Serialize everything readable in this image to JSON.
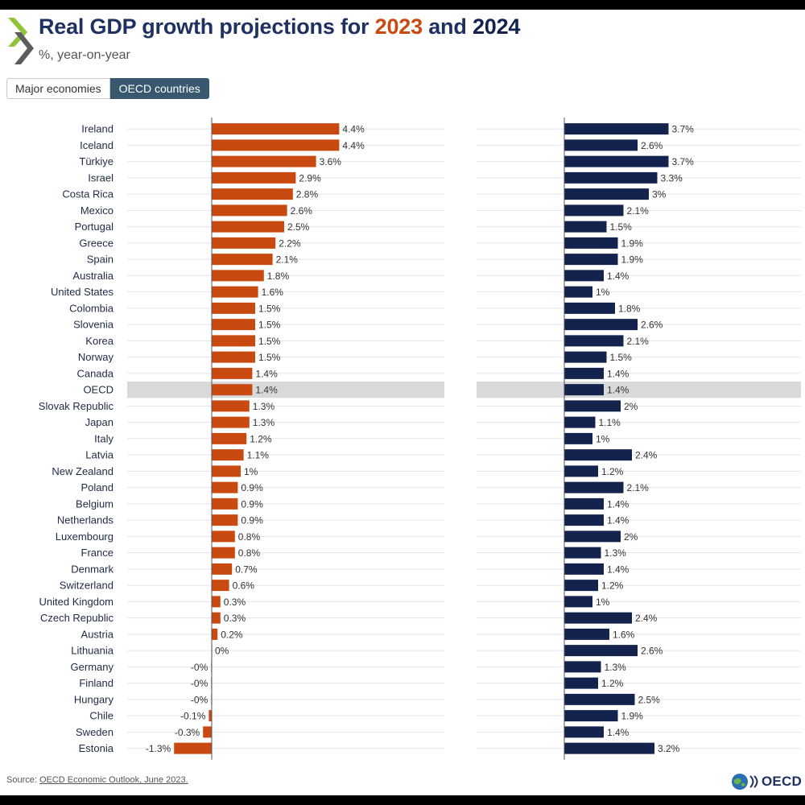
{
  "title": {
    "prefix": "Real GDP growth projections for ",
    "year1": "2023",
    "joiner": " and ",
    "year2": "2024"
  },
  "subtitle": "%, year-on-year",
  "tabs": [
    {
      "label": "Major economies",
      "active": false
    },
    {
      "label": "OECD countries",
      "active": true
    }
  ],
  "colors": {
    "series_2023": "#c94a10",
    "series_2024": "#14234d",
    "highlight_row": "#d9d9d9",
    "grid": "#e4e4e4"
  },
  "chart_data": {
    "type": "bar",
    "orientation": "horizontal",
    "layout": "two side-by-side panels, one per year",
    "categories": [
      "Ireland",
      "Iceland",
      "Türkiye",
      "Israel",
      "Costa Rica",
      "Mexico",
      "Portugal",
      "Greece",
      "Spain",
      "Australia",
      "United States",
      "Colombia",
      "Slovenia",
      "Korea",
      "Norway",
      "Canada",
      "OECD",
      "Slovak Republic",
      "Japan",
      "Italy",
      "Latvia",
      "New Zealand",
      "Poland",
      "Belgium",
      "Netherlands",
      "Luxembourg",
      "France",
      "Denmark",
      "Switzerland",
      "United Kingdom",
      "Czech Republic",
      "Austria",
      "Lithuania",
      "Germany",
      "Finland",
      "Hungary",
      "Chile",
      "Sweden",
      "Estonia"
    ],
    "highlight_category": "OECD",
    "series": [
      {
        "name": "2023",
        "values": [
          4.4,
          4.4,
          3.6,
          2.9,
          2.8,
          2.6,
          2.5,
          2.2,
          2.1,
          1.8,
          1.6,
          1.5,
          1.5,
          1.5,
          1.5,
          1.4,
          1.4,
          1.3,
          1.3,
          1.2,
          1.1,
          1.0,
          0.9,
          0.9,
          0.9,
          0.8,
          0.8,
          0.7,
          0.6,
          0.3,
          0.3,
          0.2,
          0.0,
          -0.02,
          -0.02,
          -0.02,
          -0.1,
          -0.3,
          -1.3
        ],
        "labels": [
          "4.4%",
          "4.4%",
          "3.6%",
          "2.9%",
          "2.8%",
          "2.6%",
          "2.5%",
          "2.2%",
          "2.1%",
          "1.8%",
          "1.6%",
          "1.5%",
          "1.5%",
          "1.5%",
          "1.5%",
          "1.4%",
          "1.4%",
          "1.3%",
          "1.3%",
          "1.2%",
          "1.1%",
          "1%",
          "0.9%",
          "0.9%",
          "0.9%",
          "0.8%",
          "0.8%",
          "0.7%",
          "0.6%",
          "0.3%",
          "0.3%",
          "0.2%",
          "0%",
          "-0%",
          "-0%",
          "-0%",
          "-0.1%",
          "-0.3%",
          "-1.3%"
        ]
      },
      {
        "name": "2024",
        "values": [
          3.7,
          2.6,
          3.7,
          3.3,
          3.0,
          2.1,
          1.5,
          1.9,
          1.9,
          1.4,
          1.0,
          1.8,
          2.6,
          2.1,
          1.5,
          1.4,
          1.4,
          2.0,
          1.1,
          1.0,
          2.4,
          1.2,
          2.1,
          1.4,
          1.4,
          2.0,
          1.3,
          1.4,
          1.2,
          1.0,
          2.4,
          1.6,
          2.6,
          1.3,
          1.2,
          2.5,
          1.9,
          1.4,
          3.2
        ],
        "labels": [
          "3.7%",
          "2.6%",
          "3.7%",
          "3.3%",
          "3%",
          "2.1%",
          "1.5%",
          "1.9%",
          "1.9%",
          "1.4%",
          "1%",
          "1.8%",
          "2.6%",
          "2.1%",
          "1.5%",
          "1.4%",
          "1.4%",
          "2%",
          "1.1%",
          "1%",
          "2.4%",
          "1.2%",
          "2.1%",
          "1.4%",
          "1.4%",
          "2%",
          "1.3%",
          "1.4%",
          "1.2%",
          "1%",
          "2.4%",
          "1.6%",
          "2.6%",
          "1.3%",
          "1.2%",
          "2.5%",
          "1.9%",
          "1.4%",
          "3.2%"
        ]
      }
    ],
    "unit": "%",
    "xlabel": "",
    "ylabel": "",
    "grid": true
  },
  "source": {
    "prefix": "Source: ",
    "link_text": "OECD Economic Outlook, June 2023."
  },
  "brand": {
    "name": "OECD",
    "logo_icon": "oecd-globe-icon",
    "chevron_icon": "oecd-chevron-icon"
  }
}
